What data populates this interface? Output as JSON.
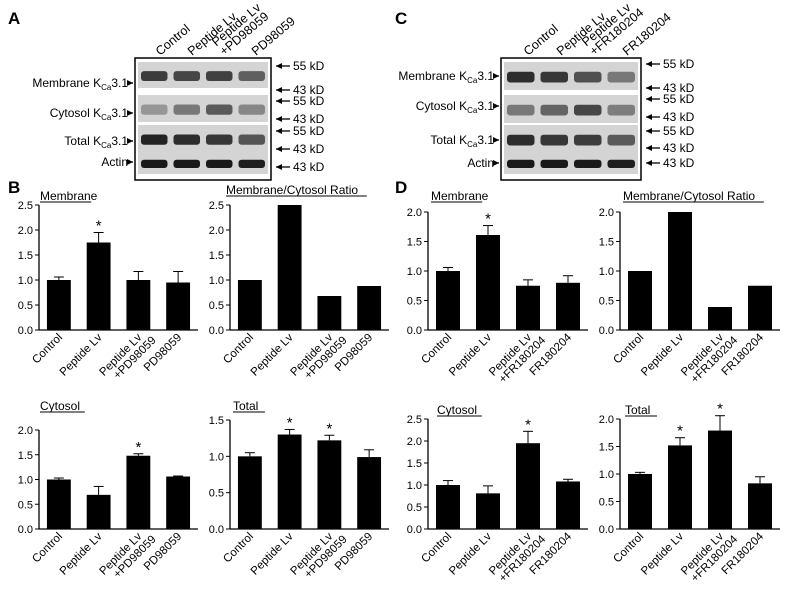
{
  "panels": [
    {
      "letter": "A"
    },
    {
      "letter": "B"
    },
    {
      "letter": "C"
    },
    {
      "letter": "D"
    }
  ],
  "blots": [
    {
      "panel": "A",
      "lanes": [
        "Control",
        "Peptide Lv",
        "Peptide Lv +PD98059",
        "PD98059"
      ],
      "rows": [
        {
          "label": "Membrane K",
          "sub": "Ca",
          "suffix": "3.1",
          "markers": [
            "55 kD",
            "43 kD"
          ]
        },
        {
          "label": "Cytosol K",
          "sub": "Ca",
          "suffix": "3.1",
          "markers": [
            "55 kD",
            "43 kD"
          ]
        },
        {
          "label": "Total K",
          "sub": "Ca",
          "suffix": "3.1",
          "markers": [
            "55 kD",
            "43 kD"
          ]
        },
        {
          "label": "Actin",
          "sub": "",
          "suffix": "",
          "markers": [
            "43 kD"
          ]
        }
      ]
    },
    {
      "panel": "C",
      "lanes": [
        "Control",
        "Peptide Lv",
        "Peptide Lv +FR180204",
        "FR180204"
      ],
      "rows": [
        {
          "label": "Membrane K",
          "sub": "Ca",
          "suffix": "3.1",
          "markers": [
            "55 kD",
            "43 kD"
          ]
        },
        {
          "label": "Cytosol K",
          "sub": "Ca",
          "suffix": "3.1",
          "markers": [
            "55 kD",
            "43 kD"
          ]
        },
        {
          "label": "Total K",
          "sub": "Ca",
          "suffix": "3.1",
          "markers": [
            "55 kD",
            "43 kD"
          ]
        },
        {
          "label": "Actin",
          "sub": "",
          "suffix": "",
          "markers": [
            "43 kD"
          ]
        }
      ]
    }
  ],
  "chart_data": [
    {
      "panel": "B",
      "type": "bar",
      "title": "Membrane",
      "categories": [
        "Control",
        "Peptide Lv",
        "Peptide Lv +PD98059",
        "PD98059"
      ],
      "values": [
        1.0,
        1.75,
        1.0,
        0.95
      ],
      "errors": [
        0.06,
        0.2,
        0.17,
        0.22
      ],
      "significant": [
        false,
        true,
        false,
        false
      ],
      "ylim": [
        0,
        2.5
      ],
      "yticks": [
        "0.0",
        "0.5",
        "1.0",
        "1.5",
        "2.0",
        "2.5"
      ],
      "bar_color": "#000000"
    },
    {
      "panel": "B",
      "type": "bar",
      "title": "Membrane/Cytosol Ratio",
      "categories": [
        "Control",
        "Peptide Lv",
        "Peptide Lv +PD98059",
        "PD98059"
      ],
      "values": [
        1.0,
        2.5,
        0.68,
        0.88
      ],
      "errors": [
        0,
        0,
        0,
        0
      ],
      "significant": [
        false,
        false,
        false,
        false
      ],
      "ylim": [
        0,
        2.5
      ],
      "yticks": [
        "0.0",
        "0.5",
        "1.0",
        "1.5",
        "2.0",
        "2.5"
      ],
      "bar_color": "#000000"
    },
    {
      "panel": "B",
      "type": "bar",
      "title": "Cytosol",
      "categories": [
        "Control",
        "Peptide Lv",
        "Peptide Lv +PD98059",
        "PD98059"
      ],
      "values": [
        1.0,
        0.69,
        1.48,
        1.06
      ],
      "errors": [
        0.03,
        0.17,
        0.04,
        0.01
      ],
      "significant": [
        false,
        false,
        true,
        false
      ],
      "ylim": [
        0,
        2.0
      ],
      "yticks": [
        "0.0",
        "0.5",
        "1.0",
        "1.5",
        "2.0"
      ],
      "bar_color": "#000000"
    },
    {
      "panel": "B",
      "type": "bar",
      "title": "Total",
      "categories": [
        "Control",
        "Peptide Lv",
        "Peptide Lv +PD98059",
        "PD98059"
      ],
      "values": [
        1.0,
        1.3,
        1.22,
        0.99
      ],
      "errors": [
        0.05,
        0.07,
        0.07,
        0.1
      ],
      "significant": [
        false,
        true,
        true,
        false
      ],
      "ylim": [
        0,
        1.5
      ],
      "yticks": [
        "0.0",
        "0.5",
        "1.0",
        "1.5"
      ],
      "bar_color": "#000000"
    },
    {
      "panel": "D",
      "type": "bar",
      "title": "Membrane",
      "categories": [
        "Control",
        "Peptide Lv",
        "Peptide Lv +FR180204",
        "FR180204"
      ],
      "values": [
        1.0,
        1.61,
        0.75,
        0.8
      ],
      "errors": [
        0.06,
        0.16,
        0.1,
        0.12
      ],
      "significant": [
        false,
        true,
        false,
        false
      ],
      "ylim": [
        0,
        2.0
      ],
      "yticks": [
        "0.0",
        "0.5",
        "1.0",
        "1.5",
        "2.0"
      ],
      "bar_color": "#000000"
    },
    {
      "panel": "D",
      "type": "bar",
      "title": "Membrane/Cytosol Ratio",
      "categories": [
        "Control",
        "Peptide Lv",
        "Peptide Lv +FR180204",
        "FR180204"
      ],
      "values": [
        1.0,
        2.0,
        0.39,
        0.75
      ],
      "errors": [
        0,
        0,
        0,
        0
      ],
      "significant": [
        false,
        false,
        false,
        false
      ],
      "ylim": [
        0,
        2.0
      ],
      "yticks": [
        "0.0",
        "0.5",
        "1.0",
        "1.5",
        "2.0"
      ],
      "bar_color": "#000000"
    },
    {
      "panel": "D",
      "type": "bar",
      "title": "Cytosol",
      "categories": [
        "Control",
        "Peptide Lv",
        "Peptide Lv +FR180204",
        "FR180204"
      ],
      "values": [
        1.0,
        0.81,
        1.95,
        1.08
      ],
      "errors": [
        0.1,
        0.17,
        0.27,
        0.05
      ],
      "significant": [
        false,
        false,
        true,
        false
      ],
      "ylim": [
        0,
        2.5
      ],
      "yticks": [
        "0.0",
        "0.5",
        "1.0",
        "1.5",
        "2.0",
        "2.5"
      ],
      "bar_color": "#000000"
    },
    {
      "panel": "D",
      "type": "bar",
      "title": "Total",
      "categories": [
        "Control",
        "Peptide Lv",
        "Peptide Lv +FR180204",
        "FR180204"
      ],
      "values": [
        1.0,
        1.52,
        1.79,
        0.83
      ],
      "errors": [
        0.03,
        0.14,
        0.27,
        0.12
      ],
      "significant": [
        false,
        true,
        true,
        false
      ],
      "ylim": [
        0,
        2.0
      ],
      "yticks": [
        "0.0",
        "0.5",
        "1.0",
        "1.5",
        "2.0"
      ],
      "bar_color": "#000000"
    }
  ]
}
